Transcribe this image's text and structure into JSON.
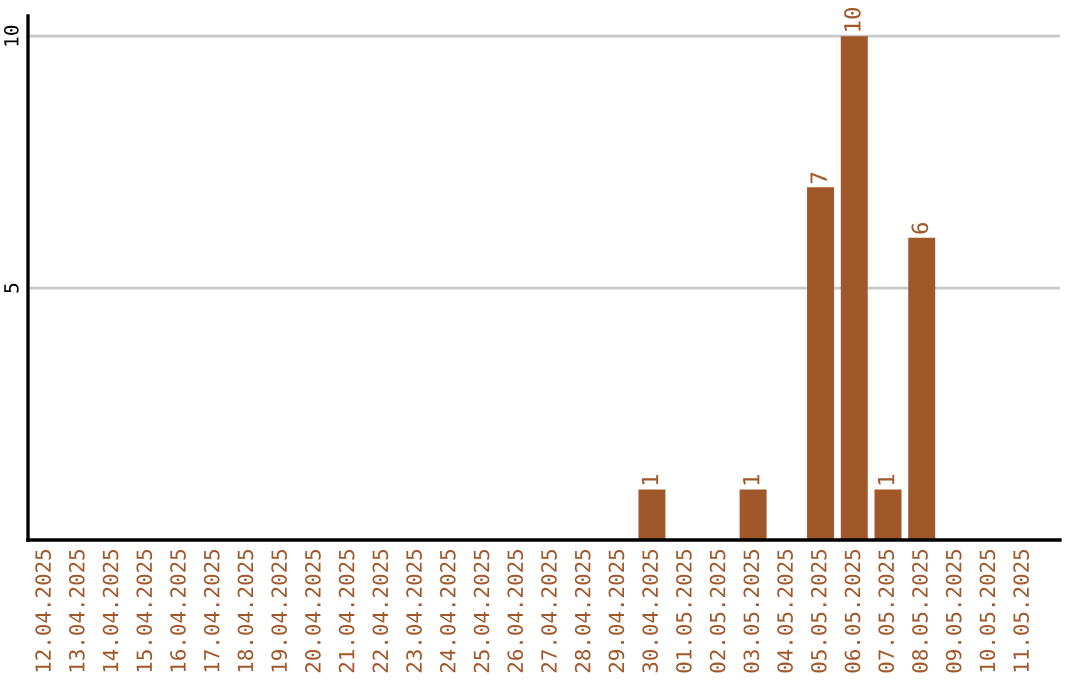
{
  "chart_data": {
    "type": "bar",
    "categories": [
      "12.04.2025",
      "13.04.2025",
      "14.04.2025",
      "15.04.2025",
      "16.04.2025",
      "17.04.2025",
      "18.04.2025",
      "19.04.2025",
      "20.04.2025",
      "21.04.2025",
      "22.04.2025",
      "23.04.2025",
      "24.04.2025",
      "25.04.2025",
      "26.04.2025",
      "27.04.2025",
      "28.04.2025",
      "29.04.2025",
      "30.04.2025",
      "01.05.2025",
      "02.05.2025",
      "03.05.2025",
      "04.05.2025",
      "05.05.2025",
      "06.05.2025",
      "07.05.2025",
      "08.05.2025",
      "09.05.2025",
      "10.05.2025",
      "11.05.2025"
    ],
    "values": [
      0,
      0,
      0,
      0,
      0,
      0,
      0,
      0,
      0,
      0,
      0,
      0,
      0,
      0,
      0,
      0,
      0,
      0,
      1,
      0,
      0,
      1,
      0,
      7,
      10,
      1,
      6,
      0,
      0,
      0
    ],
    "value_labels": [
      null,
      null,
      null,
      null,
      null,
      null,
      null,
      null,
      null,
      null,
      null,
      null,
      null,
      null,
      null,
      null,
      null,
      null,
      "1",
      null,
      null,
      "1",
      null,
      "7",
      "10",
      "1",
      "6",
      null,
      null,
      null
    ],
    "color": "#a0582a",
    "ylim": [
      0,
      10.4
    ],
    "yticks": [
      5,
      10
    ],
    "grid": "y",
    "legend": false
  }
}
